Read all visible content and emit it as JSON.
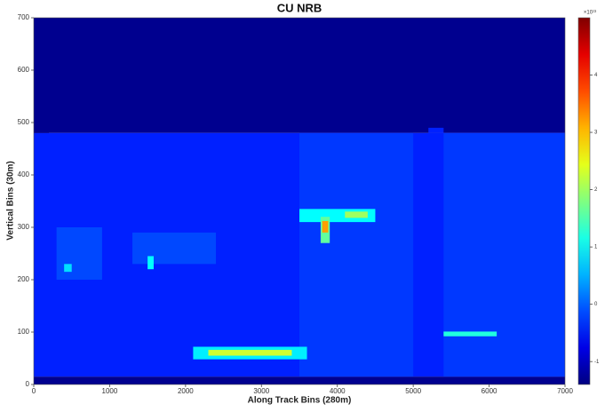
{
  "chart_data": {
    "type": "heatmap",
    "title": "CU NRB",
    "x_label": "Along Track Bins (280m)",
    "y_label": "Vertical Bins (30m)",
    "colorbar_label": "×10¹³",
    "colormap": "jet",
    "xlim": [
      0,
      7000
    ],
    "ylim": [
      0,
      700
    ],
    "clim": [
      -1.4,
      5
    ],
    "xticks": [
      0,
      1000,
      2000,
      3000,
      4000,
      5000,
      6000,
      7000
    ],
    "yticks": [
      0,
      100,
      200,
      300,
      400,
      500,
      600,
      700
    ],
    "cticks": [
      -1,
      0,
      1,
      2,
      3,
      4
    ],
    "cells": [
      {
        "x": [
          0,
          7000
        ],
        "y": [
          480,
          700
        ],
        "value": -1.3
      },
      {
        "x": [
          0,
          7000
        ],
        "y": [
          15,
          480
        ],
        "value": -0.4
      },
      {
        "x": [
          0,
          7000
        ],
        "y": [
          0,
          15
        ],
        "value": -1.3
      },
      {
        "x": [
          3500,
          5000
        ],
        "y": [
          15,
          480
        ],
        "value": -0.25
      },
      {
        "x": [
          5400,
          7000
        ],
        "y": [
          15,
          480
        ],
        "value": -0.25
      },
      {
        "x": [
          5200,
          5400
        ],
        "y": [
          480,
          490
        ],
        "value": -0.4
      },
      {
        "x": [
          0,
          200
        ],
        "y": [
          480,
          500
        ],
        "value": -1.3
      },
      {
        "x": [
          300,
          900
        ],
        "y": [
          200,
          300
        ],
        "value": -0.15
      },
      {
        "x": [
          1300,
          2400
        ],
        "y": [
          230,
          290
        ],
        "value": -0.15
      },
      {
        "x": [
          1500,
          1580
        ],
        "y": [
          220,
          245
        ],
        "value": 1.0
      },
      {
        "x": [
          400,
          500
        ],
        "y": [
          215,
          230
        ],
        "value": 0.8
      },
      {
        "x": [
          2100,
          3600
        ],
        "y": [
          48,
          72
        ],
        "value": 0.9
      },
      {
        "x": [
          2300,
          3400
        ],
        "y": [
          55,
          66
        ],
        "value": 2.3
      },
      {
        "x": [
          3500,
          4500
        ],
        "y": [
          310,
          335
        ],
        "value": 1.0
      },
      {
        "x": [
          4100,
          4400
        ],
        "y": [
          318,
          330
        ],
        "value": 2.0
      },
      {
        "x": [
          3780,
          3900
        ],
        "y": [
          270,
          320
        ],
        "value": 1.6
      },
      {
        "x": [
          3800,
          3880
        ],
        "y": [
          290,
          312
        ],
        "value": 3.2
      },
      {
        "x": [
          5400,
          6100
        ],
        "y": [
          92,
          101
        ],
        "value": 1.2
      }
    ]
  }
}
